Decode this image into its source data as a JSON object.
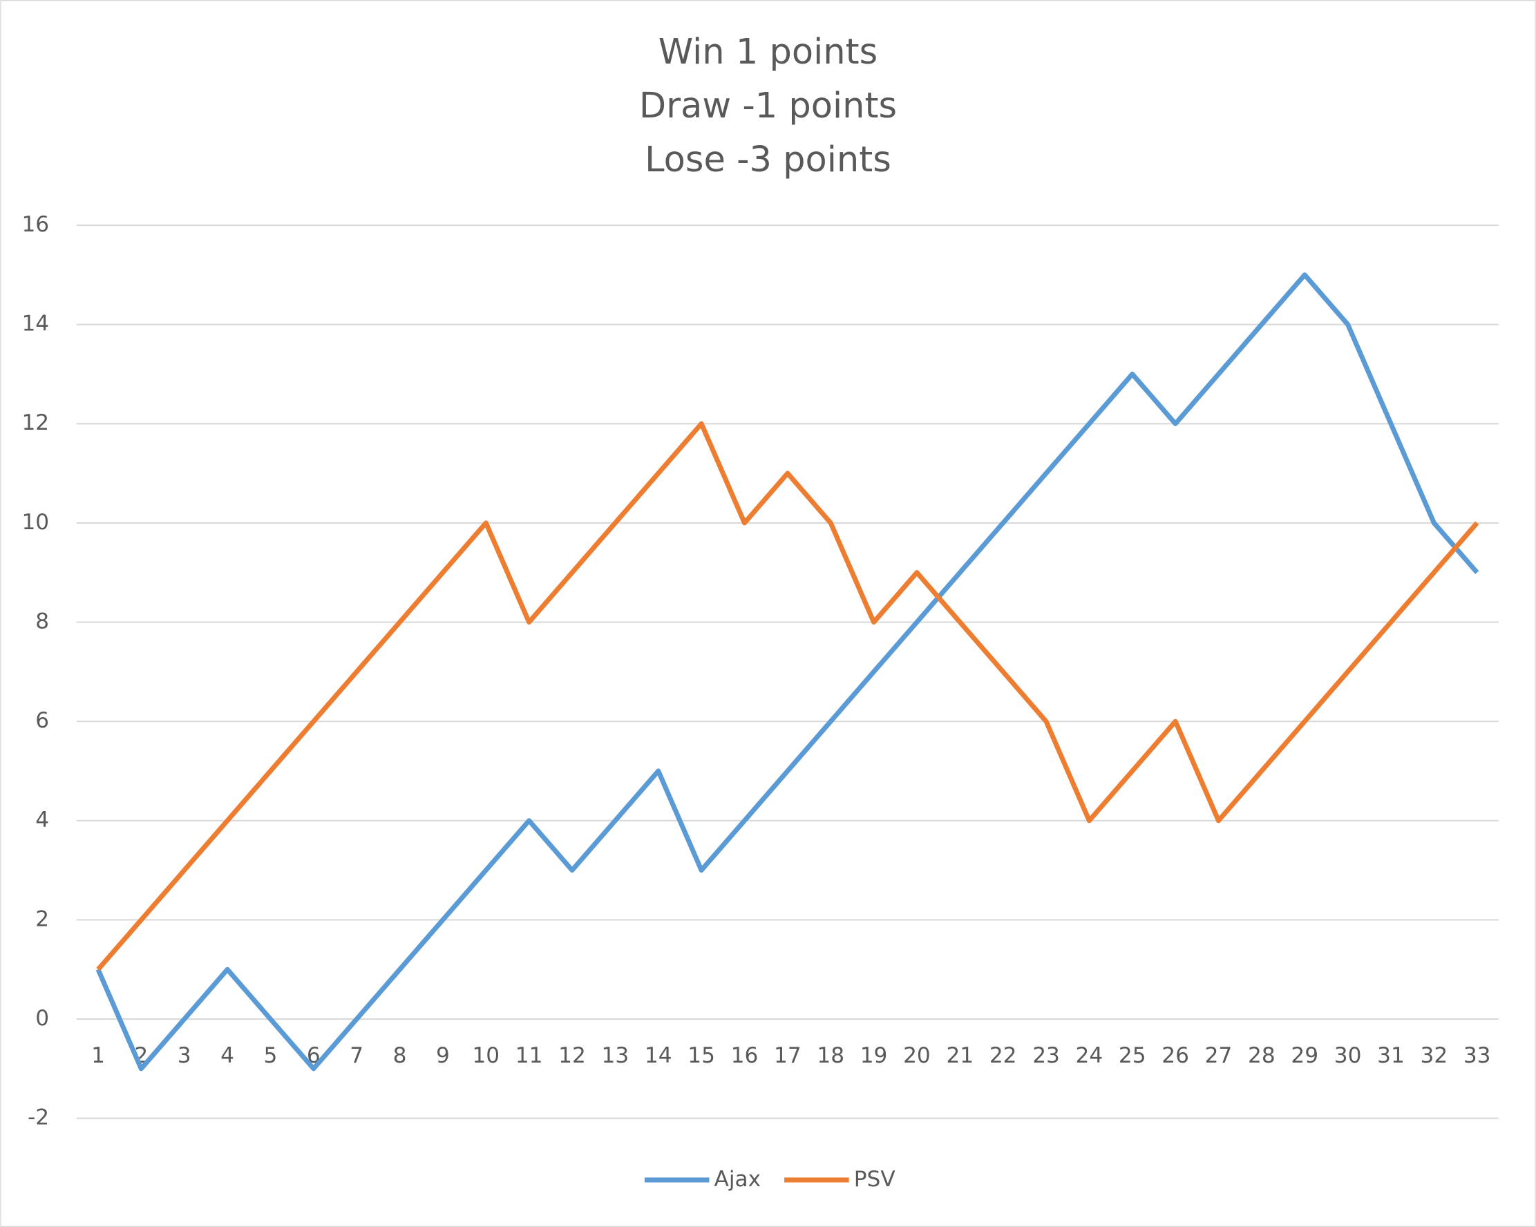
{
  "chart_data": {
    "type": "line",
    "title": [
      "Win 1 points",
      "Draw -1 points",
      "Lose -3 points"
    ],
    "categories": [
      1,
      2,
      3,
      4,
      5,
      6,
      7,
      8,
      9,
      10,
      11,
      12,
      13,
      14,
      15,
      16,
      17,
      18,
      19,
      20,
      21,
      22,
      23,
      24,
      25,
      26,
      27,
      28,
      29,
      30,
      31,
      32,
      33
    ],
    "series": [
      {
        "name": "Ajax",
        "color": "#5b9bd5",
        "values": [
          1,
          -1,
          0,
          1,
          0,
          -1,
          0,
          1,
          2,
          3,
          4,
          3,
          4,
          5,
          3,
          4,
          5,
          6,
          7,
          8,
          9,
          10,
          11,
          12,
          13,
          12,
          13,
          14,
          15,
          14,
          12,
          10,
          9
        ]
      },
      {
        "name": "PSV",
        "color": "#ed7d31",
        "values": [
          1,
          2,
          3,
          4,
          5,
          6,
          7,
          8,
          9,
          10,
          8,
          9,
          10,
          11,
          12,
          10,
          11,
          10,
          8,
          9,
          8,
          7,
          6,
          4,
          5,
          6,
          4,
          5,
          6,
          7,
          8,
          9,
          10
        ]
      }
    ],
    "ylim": [
      -2,
      16
    ],
    "yticks": [
      -2,
      0,
      2,
      4,
      6,
      8,
      10,
      12,
      14,
      16
    ],
    "grid": true,
    "legend": "bottom"
  }
}
